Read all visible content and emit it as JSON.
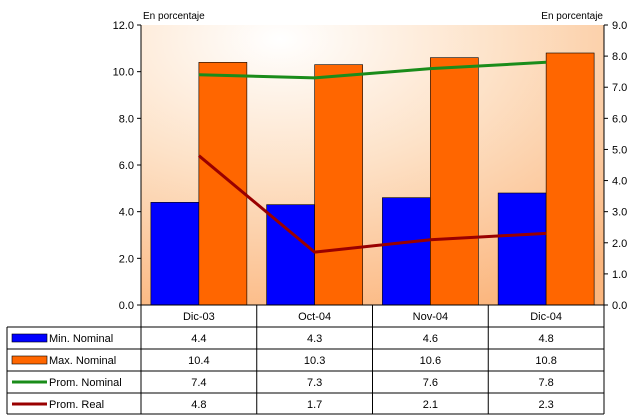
{
  "chart_data": {
    "type": "bar",
    "categories": [
      "Dic-03",
      "Oct-04",
      "Nov-04",
      "Dic-04"
    ],
    "left_axis": {
      "unit_label": "En porcentaje",
      "ylim": [
        0,
        12
      ],
      "ticks": [
        "0.0",
        "2.0",
        "4.0",
        "6.0",
        "8.0",
        "10.0",
        "12.0"
      ]
    },
    "right_axis": {
      "unit_label": "En porcentaje",
      "ylim": [
        0,
        9
      ],
      "ticks": [
        "0.0",
        "1.0",
        "2.0",
        "3.0",
        "4.0",
        "5.0",
        "6.0",
        "7.0",
        "8.0",
        "9.0"
      ]
    },
    "series": [
      {
        "name": "Min. Nominal",
        "kind": "bar",
        "axis": "left",
        "color": "#0000ff",
        "values": [
          4.4,
          4.3,
          4.6,
          4.8
        ],
        "labels": [
          "4.4",
          "4.3",
          "4.6",
          "4.8"
        ]
      },
      {
        "name": "Max. Nominal",
        "kind": "bar",
        "axis": "left",
        "color": "#ff6600",
        "values": [
          10.4,
          10.3,
          10.6,
          10.8
        ],
        "labels": [
          "10.4",
          "10.3",
          "10.6",
          "10.8"
        ]
      },
      {
        "name": "Prom. Nominal",
        "kind": "line",
        "axis": "right",
        "color": "#1a8c1a",
        "values": [
          7.4,
          7.3,
          7.6,
          7.8
        ],
        "labels": [
          "7.4",
          "7.3",
          "7.6",
          "7.8"
        ]
      },
      {
        "name": "Prom. Real",
        "kind": "line",
        "axis": "right",
        "color": "#990000",
        "values": [
          4.8,
          1.7,
          2.1,
          2.3
        ],
        "labels": [
          "4.8",
          "1.7",
          "2.1",
          "2.3"
        ]
      }
    ],
    "grid": false,
    "legend": "data-table"
  }
}
